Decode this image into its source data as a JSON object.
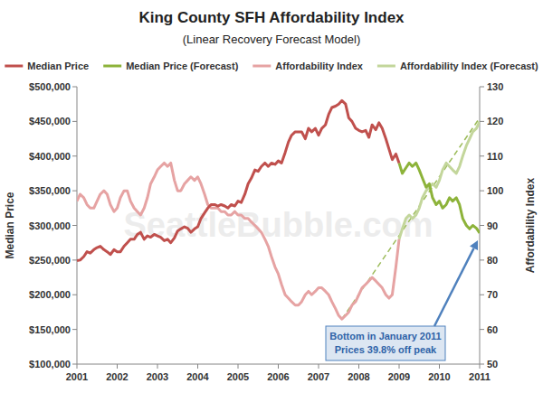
{
  "chart_data": {
    "type": "line",
    "title": "King County SFH Affordability Index",
    "subtitle": "(Linear Recovery Forecast Model)",
    "y_label": "Median Price",
    "y2_label": "Affordability Index",
    "watermark": "SeattleBubble.com",
    "annotation": [
      "Bottom in January 2011",
      "Prices 39.8% off peak"
    ],
    "legend": "top",
    "grid": false,
    "xlim": [
      2001,
      2011
    ],
    "xticks": [
      2001,
      2002,
      2003,
      2004,
      2005,
      2006,
      2007,
      2008,
      2009,
      2010,
      2011
    ],
    "ylim": [
      100000,
      500000
    ],
    "yticks": [
      {
        "value": 100000,
        "label": "$100,000"
      },
      {
        "value": 150000,
        "label": "$150,000"
      },
      {
        "value": 200000,
        "label": "$200,000"
      },
      {
        "value": 250000,
        "label": "$250,000"
      },
      {
        "value": 300000,
        "label": "$300,000"
      },
      {
        "value": 350000,
        "label": "$350,000"
      },
      {
        "value": 400000,
        "label": "$400,000"
      },
      {
        "value": 450000,
        "label": "$450,000"
      },
      {
        "value": 500000,
        "label": "$500,000"
      }
    ],
    "y2lim": [
      50,
      130
    ],
    "y2ticks": [
      50,
      60,
      70,
      80,
      90,
      100,
      110,
      120,
      130
    ],
    "x": [
      2001,
      2001.08,
      2001.17,
      2001.25,
      2001.33,
      2001.42,
      2001.5,
      2001.58,
      2001.67,
      2001.75,
      2001.83,
      2001.92,
      2002,
      2002.08,
      2002.17,
      2002.25,
      2002.33,
      2002.42,
      2002.5,
      2002.58,
      2002.67,
      2002.75,
      2002.83,
      2002.92,
      2003,
      2003.08,
      2003.17,
      2003.25,
      2003.33,
      2003.42,
      2003.5,
      2003.58,
      2003.67,
      2003.75,
      2003.83,
      2003.92,
      2004,
      2004.08,
      2004.17,
      2004.25,
      2004.33,
      2004.42,
      2004.5,
      2004.58,
      2004.67,
      2004.75,
      2004.83,
      2004.92,
      2005,
      2005.08,
      2005.17,
      2005.25,
      2005.33,
      2005.42,
      2005.5,
      2005.58,
      2005.67,
      2005.75,
      2005.83,
      2005.92,
      2006,
      2006.08,
      2006.17,
      2006.25,
      2006.33,
      2006.42,
      2006.5,
      2006.58,
      2006.67,
      2006.75,
      2006.83,
      2006.92,
      2007,
      2007.08,
      2007.17,
      2007.25,
      2007.33,
      2007.42,
      2007.5,
      2007.58,
      2007.67,
      2007.75,
      2007.83,
      2007.92,
      2008,
      2008.08,
      2008.17,
      2008.25,
      2008.33,
      2008.42,
      2008.5,
      2008.58,
      2008.67,
      2008.75,
      2008.83,
      2008.92,
      2009,
      2009.08,
      2009.17,
      2009.25,
      2009.33,
      2009.42,
      2009.5,
      2009.58,
      2009.67,
      2009.75,
      2009.83,
      2009.92,
      2010,
      2010.08,
      2010.17,
      2010.25,
      2010.33,
      2010.42,
      2010.5,
      2010.58,
      2010.67,
      2010.75,
      2010.83,
      2010.92,
      2011
    ],
    "series": [
      {
        "name": "Median Price",
        "color": "#c0504d",
        "line_style": "solid",
        "values": [
          249000,
          250000,
          255000,
          262000,
          260000,
          265000,
          268000,
          270000,
          265000,
          262000,
          258000,
          265000,
          262000,
          262000,
          270000,
          275000,
          280000,
          280000,
          287000,
          290000,
          280000,
          285000,
          283000,
          287000,
          285000,
          283000,
          278000,
          280000,
          275000,
          282000,
          292000,
          295000,
          298000,
          296000,
          290000,
          295000,
          298000,
          310000,
          318000,
          325000,
          330000,
          330000,
          328000,
          330000,
          328000,
          325000,
          330000,
          328000,
          335000,
          333000,
          345000,
          360000,
          368000,
          380000,
          378000,
          385000,
          390000,
          385000,
          390000,
          388000,
          393000,
          390000,
          405000,
          420000,
          430000,
          435000,
          435000,
          435000,
          425000,
          440000,
          435000,
          440000,
          430000,
          440000,
          445000,
          460000,
          470000,
          472000,
          475000,
          480000,
          475000,
          455000,
          450000,
          440000,
          437000,
          435000,
          437000,
          427000,
          445000,
          438000,
          448000,
          440000,
          425000,
          410000,
          395000,
          403000,
          390000,
          null,
          null,
          null,
          null,
          null,
          null,
          null,
          null,
          null,
          null,
          null,
          null,
          null,
          null,
          null,
          null,
          null,
          null,
          null,
          null,
          null,
          null,
          null,
          null
        ]
      },
      {
        "name": "Median Price (Forecast)",
        "color": "#8db33a",
        "line_style": "solid",
        "values": [
          null,
          null,
          null,
          null,
          null,
          null,
          null,
          null,
          null,
          null,
          null,
          null,
          null,
          null,
          null,
          null,
          null,
          null,
          null,
          null,
          null,
          null,
          null,
          null,
          null,
          null,
          null,
          null,
          null,
          null,
          null,
          null,
          null,
          null,
          null,
          null,
          null,
          null,
          null,
          null,
          null,
          null,
          null,
          null,
          null,
          null,
          null,
          null,
          null,
          null,
          null,
          null,
          null,
          null,
          null,
          null,
          null,
          null,
          null,
          null,
          null,
          null,
          null,
          null,
          null,
          null,
          null,
          null,
          null,
          null,
          null,
          null,
          null,
          null,
          null,
          null,
          null,
          null,
          null,
          null,
          null,
          null,
          null,
          null,
          null,
          null,
          null,
          null,
          null,
          null,
          null,
          null,
          null,
          null,
          null,
          null,
          390000,
          375000,
          383000,
          390000,
          385000,
          390000,
          380000,
          368000,
          355000,
          360000,
          340000,
          330000,
          335000,
          325000,
          330000,
          340000,
          335000,
          340000,
          330000,
          310000,
          300000,
          295000,
          300000,
          296000,
          289000
        ]
      },
      {
        "name": "Affordability Index",
        "color": "#e6a3a3",
        "line_style": "solid",
        "axis": "y2",
        "values": [
          97,
          99,
          98,
          96,
          95,
          95,
          97,
          99,
          100,
          99,
          96,
          94,
          95,
          98,
          100,
          100,
          97,
          95,
          94,
          93,
          95,
          98,
          102,
          104,
          106,
          107,
          108,
          107,
          108,
          103,
          100,
          100,
          102,
          103,
          104,
          103,
          104,
          102,
          99,
          96,
          95,
          95,
          95,
          94,
          94,
          93,
          93,
          94,
          93,
          93,
          92,
          92,
          91,
          90,
          89,
          88,
          86,
          84,
          81,
          78,
          76,
          73,
          70,
          69,
          68,
          67,
          67,
          68,
          70,
          71,
          70,
          71,
          72,
          72,
          71,
          70,
          68,
          66,
          64,
          63,
          64,
          65,
          67,
          68,
          70,
          72,
          73,
          74,
          75,
          74,
          73,
          72,
          70,
          69,
          70,
          78,
          86,
          null,
          null,
          null,
          null,
          null,
          null,
          null,
          null,
          null,
          null,
          null,
          null,
          null,
          null,
          null,
          null,
          null,
          null,
          null,
          null,
          null,
          null,
          null,
          null
        ]
      },
      {
        "name": "Affordability Index (Forecast)",
        "color": "#c3d69b",
        "line_style": "solid",
        "axis": "y2",
        "values": [
          null,
          null,
          null,
          null,
          null,
          null,
          null,
          null,
          null,
          null,
          null,
          null,
          null,
          null,
          null,
          null,
          null,
          null,
          null,
          null,
          null,
          null,
          null,
          null,
          null,
          null,
          null,
          null,
          null,
          null,
          null,
          null,
          null,
          null,
          null,
          null,
          null,
          null,
          null,
          null,
          null,
          null,
          null,
          null,
          null,
          null,
          null,
          null,
          null,
          null,
          null,
          null,
          null,
          null,
          null,
          null,
          null,
          null,
          null,
          null,
          null,
          null,
          null,
          null,
          null,
          null,
          null,
          null,
          null,
          null,
          null,
          null,
          null,
          null,
          null,
          null,
          null,
          null,
          null,
          null,
          null,
          null,
          null,
          null,
          null,
          null,
          null,
          null,
          null,
          null,
          null,
          null,
          null,
          null,
          null,
          null,
          86,
          89,
          92,
          93,
          92,
          93,
          95,
          98,
          100,
          101,
          102,
          101,
          103,
          106,
          108,
          107,
          106,
          105,
          107,
          110,
          113,
          115,
          117,
          118,
          120
        ]
      }
    ],
    "trend": {
      "x": [
        2007.58,
        2011
      ],
      "values": [
        63,
        121
      ],
      "color": "#9bbb59",
      "line_style": "dashed",
      "axis": "y2"
    }
  }
}
